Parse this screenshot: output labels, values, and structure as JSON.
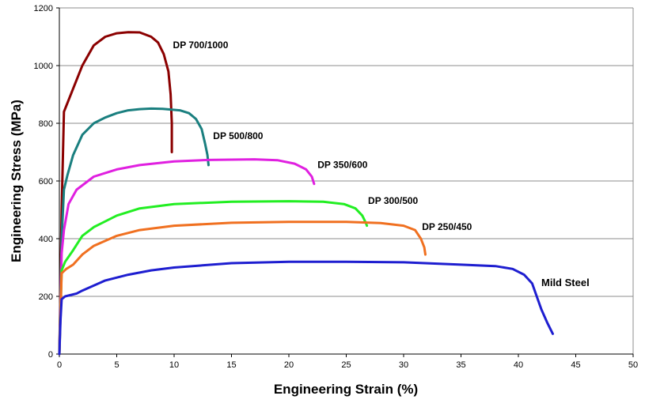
{
  "chart_data": {
    "type": "line",
    "title": "",
    "xlabel": "Engineering Strain (%)",
    "ylabel": "Engineering Stress (MPa)",
    "xlim": [
      0,
      50
    ],
    "ylim": [
      0,
      1200
    ],
    "x_ticks": [
      0,
      5,
      10,
      15,
      20,
      25,
      30,
      35,
      40,
      45,
      50
    ],
    "y_ticks": [
      0,
      200,
      400,
      600,
      800,
      1000,
      1200
    ],
    "grid": "horizontal",
    "series": [
      {
        "name": "DP 700/1000",
        "color": "#8B0000",
        "points": [
          [
            0,
            0
          ],
          [
            0.2,
            500
          ],
          [
            0.4,
            840
          ],
          [
            0.8,
            880
          ],
          [
            1.2,
            920
          ],
          [
            2,
            1000
          ],
          [
            3,
            1070
          ],
          [
            4,
            1100
          ],
          [
            5,
            1112
          ],
          [
            6,
            1116
          ],
          [
            7,
            1115
          ],
          [
            8,
            1100
          ],
          [
            8.6,
            1080
          ],
          [
            9.1,
            1040
          ],
          [
            9.5,
            980
          ],
          [
            9.7,
            900
          ],
          [
            9.8,
            800
          ],
          [
            9.8,
            700
          ]
        ]
      },
      {
        "name": "DP 500/800",
        "color": "#1A7F7F",
        "points": [
          [
            0,
            0
          ],
          [
            0.2,
            400
          ],
          [
            0.4,
            570
          ],
          [
            0.7,
            620
          ],
          [
            1.2,
            690
          ],
          [
            2,
            760
          ],
          [
            3,
            800
          ],
          [
            4,
            820
          ],
          [
            5,
            835
          ],
          [
            6,
            845
          ],
          [
            7,
            849
          ],
          [
            8,
            851
          ],
          [
            9,
            850
          ],
          [
            10.5,
            845
          ],
          [
            11.3,
            835
          ],
          [
            11.9,
            815
          ],
          [
            12.4,
            780
          ],
          [
            12.7,
            730
          ],
          [
            12.9,
            690
          ],
          [
            13,
            655
          ]
        ]
      },
      {
        "name": "DP 350/600",
        "color": "#E020E0",
        "points": [
          [
            0,
            0
          ],
          [
            0.2,
            350
          ],
          [
            0.4,
            430
          ],
          [
            0.8,
            520
          ],
          [
            1.5,
            570
          ],
          [
            3,
            615
          ],
          [
            5,
            640
          ],
          [
            7,
            655
          ],
          [
            10,
            668
          ],
          [
            13,
            673
          ],
          [
            17,
            675
          ],
          [
            19,
            672
          ],
          [
            20.5,
            660
          ],
          [
            21.5,
            640
          ],
          [
            22,
            615
          ],
          [
            22.2,
            590
          ]
        ]
      },
      {
        "name": "DP 300/500",
        "color": "#22EE22",
        "points": [
          [
            0,
            0
          ],
          [
            0.2,
            290
          ],
          [
            0.5,
            320
          ],
          [
            1.2,
            360
          ],
          [
            2,
            410
          ],
          [
            3,
            440
          ],
          [
            5,
            480
          ],
          [
            7,
            505
          ],
          [
            10,
            520
          ],
          [
            15,
            528
          ],
          [
            20,
            530
          ],
          [
            23,
            528
          ],
          [
            24.8,
            520
          ],
          [
            25.8,
            505
          ],
          [
            26.4,
            480
          ],
          [
            26.7,
            455
          ],
          [
            26.8,
            445
          ]
        ]
      },
      {
        "name": "DP 250/450",
        "color": "#F07020",
        "points": [
          [
            0,
            0
          ],
          [
            0.2,
            280
          ],
          [
            0.6,
            295
          ],
          [
            1.2,
            310
          ],
          [
            2,
            345
          ],
          [
            3,
            375
          ],
          [
            5,
            410
          ],
          [
            7,
            430
          ],
          [
            10,
            445
          ],
          [
            15,
            455
          ],
          [
            20,
            458
          ],
          [
            25,
            458
          ],
          [
            28,
            454
          ],
          [
            30,
            445
          ],
          [
            31,
            430
          ],
          [
            31.5,
            400
          ],
          [
            31.8,
            370
          ],
          [
            31.9,
            345
          ]
        ]
      },
      {
        "name": "Mild Steel",
        "color": "#1E1ED0",
        "points": [
          [
            0,
            0
          ],
          [
            0.1,
            120
          ],
          [
            0.2,
            190
          ],
          [
            0.5,
            200
          ],
          [
            1.5,
            210
          ],
          [
            2,
            220
          ],
          [
            4,
            255
          ],
          [
            6,
            275
          ],
          [
            8,
            290
          ],
          [
            10,
            300
          ],
          [
            15,
            315
          ],
          [
            20,
            320
          ],
          [
            25,
            320
          ],
          [
            30,
            318
          ],
          [
            35,
            310
          ],
          [
            38,
            305
          ],
          [
            39.5,
            295
          ],
          [
            40.5,
            275
          ],
          [
            41.2,
            245
          ],
          [
            41.6,
            200
          ],
          [
            42,
            155
          ],
          [
            42.5,
            110
          ],
          [
            43,
            70
          ]
        ]
      }
    ],
    "annotations": [
      {
        "text": "DP 700/1000",
        "x": 9.9,
        "y": 1060
      },
      {
        "text": "DP 500/800",
        "x": 13.4,
        "y": 745
      },
      {
        "text": "DP 350/600",
        "x": 22.5,
        "y": 645
      },
      {
        "text": "DP 300/500",
        "x": 26.9,
        "y": 520
      },
      {
        "text": "DP 250/450",
        "x": 31.6,
        "y": 430
      },
      {
        "text": "Mild Steel",
        "x": 42.0,
        "y": 235
      }
    ]
  }
}
